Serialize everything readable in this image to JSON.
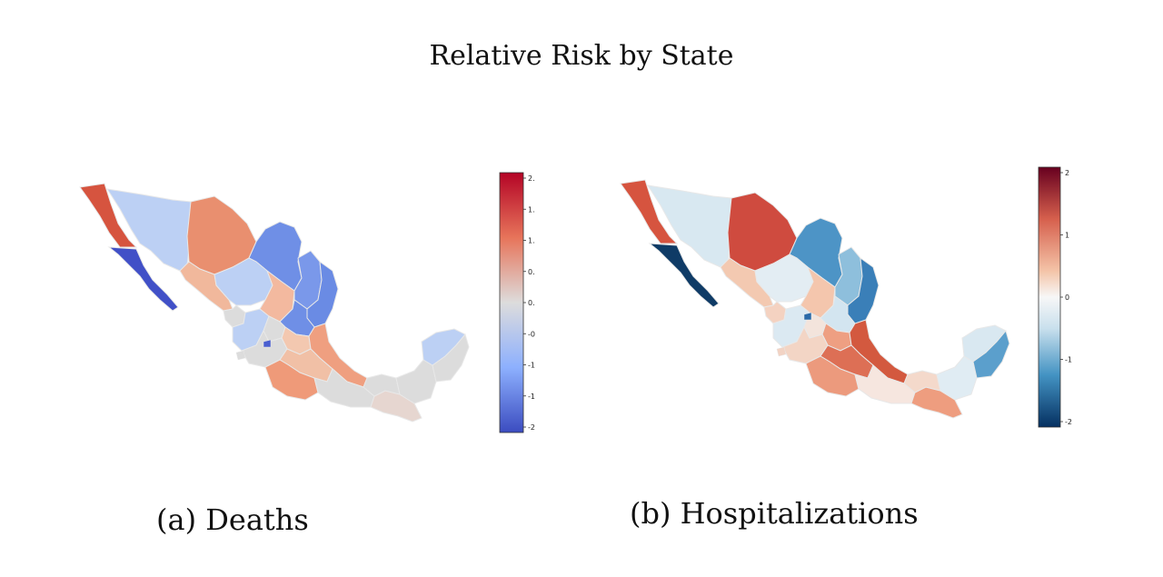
{
  "figure": {
    "title": "Relative Risk by State"
  },
  "panels": [
    {
      "caption": "(a) Deaths",
      "colorbar": {
        "tick_labels": [
          "2.",
          "1.",
          "1.",
          "0.",
          "0.",
          "-0",
          "-1",
          "-1",
          "-2"
        ],
        "range": [
          -2.2,
          2.2
        ]
      }
    },
    {
      "caption": "(b) Hospitalizations",
      "colorbar": {
        "tick_labels": [
          "2",
          "1",
          "0",
          "-1",
          "-2"
        ],
        "range": [
          -2.3,
          2.2
        ]
      }
    }
  ],
  "colors": {
    "deep_red": "#7a0020",
    "red": "#c9473b",
    "salmon": "#e8896c",
    "light_salmon": "#f2b99d",
    "neutral": "#dcdcdc",
    "light_blue": "#b9cdf2",
    "blue": "#6f8fe6",
    "deep_blue": "#3f4ec4",
    "navy": "#0e3a66",
    "steel_blue": "#4d94c6"
  }
}
